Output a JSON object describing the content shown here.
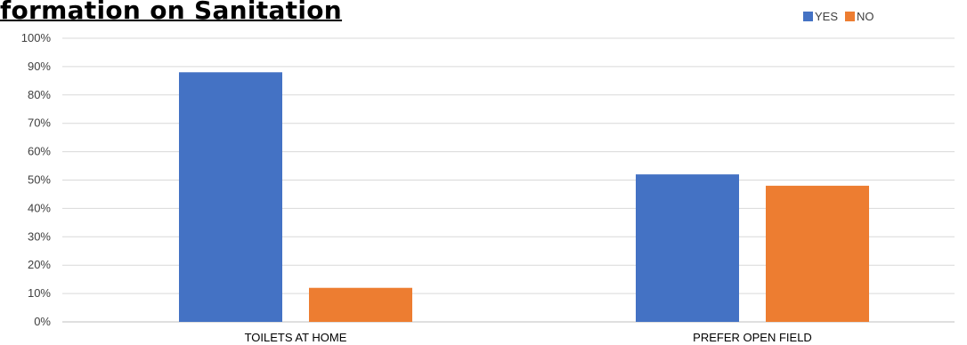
{
  "chart_data": {
    "type": "bar",
    "title": "formation on Sanitation",
    "categories": [
      "TOILETS AT HOME",
      "PREFER OPEN FIELD"
    ],
    "series": [
      {
        "name": "YES",
        "color": "#4472C4",
        "values": [
          88,
          52
        ]
      },
      {
        "name": "NO",
        "color": "#ED7D31",
        "values": [
          12,
          48
        ]
      }
    ],
    "ylim": [
      0,
      100
    ],
    "y_ticks": [
      "0%",
      "10%",
      "20%",
      "30%",
      "40%",
      "50%",
      "60%",
      "70%",
      "80%",
      "90%",
      "100%"
    ],
    "y_unit": "%",
    "grid": true,
    "legend_position": "top-right"
  }
}
